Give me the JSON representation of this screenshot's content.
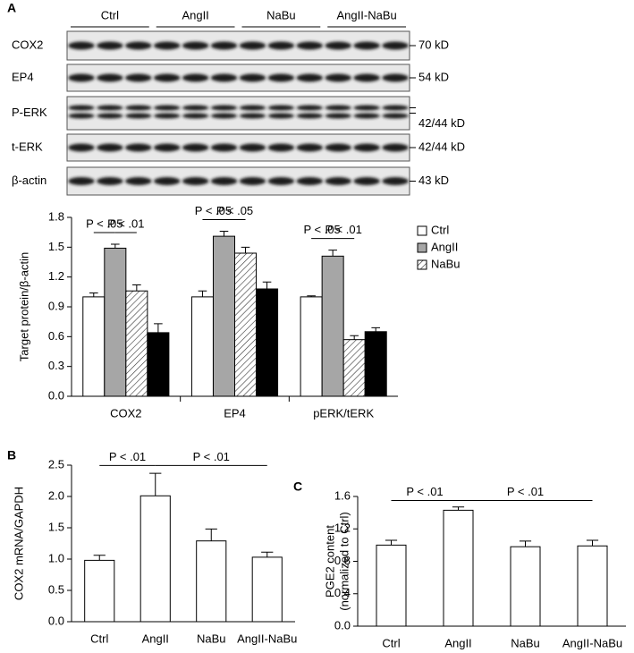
{
  "blot": {
    "panel_label": "A",
    "groups": [
      "Ctrl",
      "AngII",
      "NaBu",
      "AngII-NaBu"
    ],
    "rows": [
      {
        "label": "COX2",
        "size": "70 kD"
      },
      {
        "label": "EP4",
        "size": "54 kD"
      },
      {
        "label": "P-ERK",
        "size": "42/44 kD"
      },
      {
        "label": "t-ERK",
        "size": "42/44 kD"
      },
      {
        "label": "β-actin",
        "size": "43 kD"
      }
    ]
  },
  "chart_data": [
    {
      "type": "bar",
      "ylabel": [
        "Target protein/β-actin"
      ],
      "categories": [
        "COX2",
        "EP4",
        "pERK/tERK"
      ],
      "series": [
        {
          "name": "Ctrl",
          "color": "#ffffff",
          "values": [
            1.0,
            1.0,
            1.0
          ],
          "errors": [
            0.04,
            0.06,
            0.01
          ]
        },
        {
          "name": "AngII",
          "color": "#a6a6a6",
          "values": [
            1.49,
            1.61,
            1.41
          ],
          "errors": [
            0.04,
            0.05,
            0.06
          ]
        },
        {
          "name": "NaBu",
          "color": "#ffffff",
          "hatch": true,
          "values": [
            1.06,
            1.44,
            0.57
          ],
          "errors": [
            0.06,
            0.06,
            0.04
          ]
        },
        {
          "name": null,
          "color": "#000000",
          "values": [
            0.64,
            1.08,
            0.65
          ],
          "errors": [
            0.09,
            0.07,
            0.04
          ]
        }
      ],
      "ylim": [
        0,
        1.8
      ],
      "yticks": [
        {
          "value": 0,
          "label": "0.0"
        },
        0.3,
        0.6,
        0.9,
        1.2,
        1.5,
        1.8
      ],
      "annotations": [
        {
          "text": "P < .05",
          "category": 0,
          "from": 0,
          "to": 1
        },
        {
          "text": "P < .01",
          "category": 0,
          "from": 1,
          "to": 2
        },
        {
          "text": "P < .05",
          "category": 1,
          "from": 0,
          "to": 1
        },
        {
          "text": "P < .05",
          "category": 1,
          "from": 1,
          "to": 2
        },
        {
          "text": "P < .05",
          "category": 2,
          "from": 0,
          "to": 1
        },
        {
          "text": "P < .01",
          "category": 2,
          "from": 1,
          "to": 2
        }
      ]
    },
    {
      "type": "bar",
      "panel_label": "B",
      "ylabel": [
        "COX2 mRNA/GAPDH"
      ],
      "categories": [
        "Ctrl",
        "AngII",
        "NaBu",
        "AngII-NaBu"
      ],
      "color": "#ffffff",
      "values": [
        0.98,
        2.01,
        1.29,
        1.03
      ],
      "errors": [
        0.08,
        0.36,
        0.19,
        0.08
      ],
      "ylim": [
        0,
        2.5
      ],
      "yticks": [
        {
          "value": 0,
          "label": "0.0"
        },
        0.5,
        {
          "value": 1,
          "label": "1.0"
        },
        1.5,
        {
          "value": 2,
          "label": "2.0"
        },
        2.5
      ],
      "annotations": [
        {
          "text": "P < .01",
          "from": 0,
          "to": 1
        },
        {
          "text": "P < .01",
          "from": 1,
          "to": 3
        }
      ]
    },
    {
      "type": "bar",
      "panel_label": "C",
      "ylabel": [
        "PGE2 content",
        "(normalized to Ctrl)"
      ],
      "categories": [
        "Ctrl",
        "AngII",
        "NaBu",
        "AngII-NaBu"
      ],
      "color": "#ffffff",
      "values": [
        1.0,
        1.43,
        0.98,
        0.99
      ],
      "errors": [
        0.06,
        0.04,
        0.07,
        0.07
      ],
      "ylim": [
        0,
        1.6
      ],
      "yticks": [
        {
          "value": 0,
          "label": "0.0"
        },
        0.4,
        0.8,
        1.2,
        1.6
      ],
      "annotations": [
        {
          "text": "P < .01",
          "from": 0,
          "to": 1
        },
        {
          "text": "P < .01",
          "from": 1,
          "to": 3
        }
      ]
    }
  ]
}
